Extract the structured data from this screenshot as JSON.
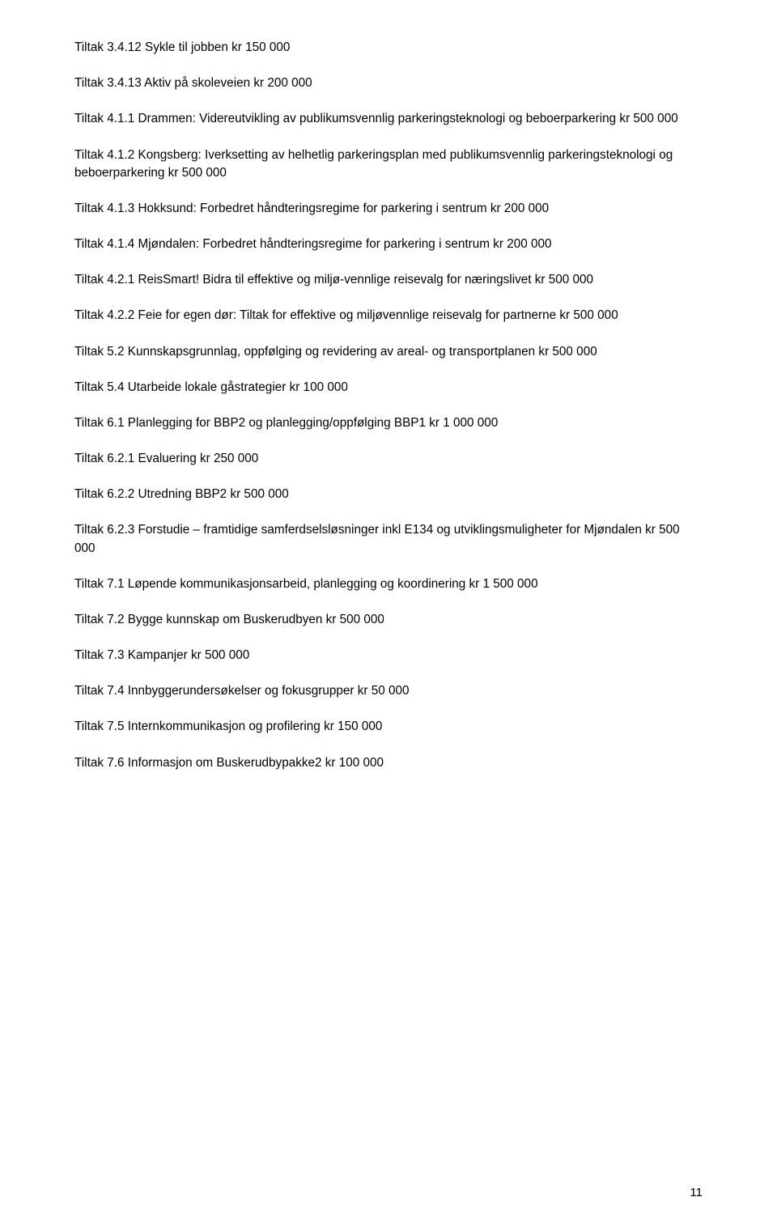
{
  "items": [
    "Tiltak 3.4.12 Sykle til jobben kr 150 000",
    "Tiltak 3.4.13 Aktiv på skoleveien kr 200 000",
    "Tiltak 4.1.1 Drammen: Videreutvikling av publikumsvennlig parkeringsteknologi og beboerparkering  kr 500 000",
    "Tiltak 4.1.2 Kongsberg: Iverksetting av helhetlig parkeringsplan med publikumsvennlig parkeringsteknologi og beboerparkering kr 500 000",
    "Tiltak 4.1.3 Hokksund: Forbedret håndteringsregime for parkering i sentrum kr 200 000",
    "Tiltak 4.1.4 Mjøndalen: Forbedret håndteringsregime for parkering i sentrum kr 200 000",
    "Tiltak 4.2.1 ReisSmart! Bidra til effektive og miljø-vennlige reisevalg for næringslivet kr 500 000",
    "Tiltak 4.2.2 Feie for egen dør: Tiltak for effektive og miljøvennlige reisevalg for partnerne kr 500 000",
    "Tiltak 5.2 Kunnskapsgrunnlag, oppfølging og revidering av areal- og transportplanen kr 500 000",
    "Tiltak 5.4 Utarbeide lokale gåstrategier kr 100 000",
    "Tiltak 6.1 Planlegging for BBP2 og planlegging/oppfølging BBP1 kr 1 000 000",
    "Tiltak 6.2.1 Evaluering kr 250 000",
    "Tiltak 6.2.2 Utredning BBP2 kr 500 000",
    "Tiltak 6.2.3 Forstudie – framtidige samferdselsløsninger inkl E134 og utviklingsmuligheter for Mjøndalen kr 500 000",
    "Tiltak 7.1 Løpende kommunikasjonsarbeid, planlegging og koordinering kr 1 500 000",
    "Tiltak 7.2 Bygge kunnskap om Buskerudbyen kr 500 000",
    "Tiltak 7.3 Kampanjer kr 500 000",
    "Tiltak 7.4 Innbyggerundersøkelser og fokusgrupper kr 50 000",
    "Tiltak 7.5 Internkommunikasjon og profilering kr 150 000",
    "Tiltak 7.6 Informasjon om Buskerudbypakke2 kr 100 000"
  ],
  "page_number": "11"
}
